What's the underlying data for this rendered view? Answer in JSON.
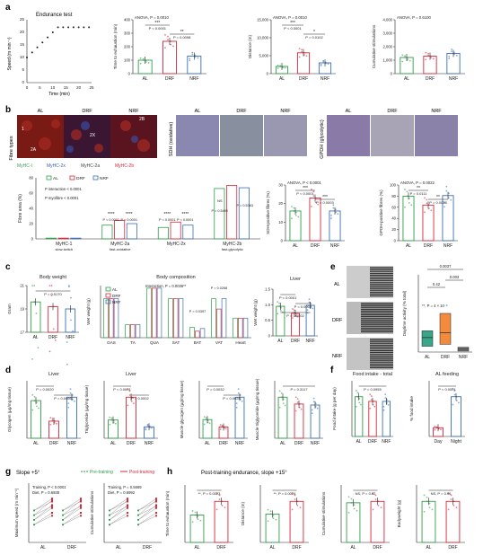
{
  "panels": {
    "a": "a",
    "b": "b",
    "c": "c",
    "d": "d",
    "e": "e",
    "f": "f",
    "g": "g",
    "h": "h"
  },
  "groups": [
    "AL",
    "DRF",
    "NRF"
  ],
  "colors": {
    "AL": "#2e9e48",
    "DRF": "#d6283a",
    "NRF": "#3b6fb6",
    "myhc1": "#3aa55a",
    "myhc2a": "#3b5fb0",
    "myhc2x": "#444444",
    "myhc2b": "#d6283a",
    "boxE_AL": "#3aa58a",
    "boxE_DRF": "#f28b3c",
    "boxE_NRF": "#7a7a7a"
  },
  "panel_a": {
    "endurance_title": "Endurance test",
    "speed_ylabel": "Speed (m min⁻¹)",
    "speed_xlabel": "Time (min)",
    "speed_xticks": [
      "0",
      "5",
      "10",
      "15",
      "20",
      "25"
    ],
    "speed_yticks": [
      "0",
      "5",
      "10",
      "15",
      "20",
      "25"
    ],
    "tte": {
      "ylabel": "Time to exhaustion (min)",
      "anova": "ANOVA, P = 0.0010",
      "p1": "P < 0.0001",
      "p2": "P = 0.0098",
      "s1": "***",
      "s2": "**",
      "yticks": [
        "0",
        "100",
        "200",
        "300",
        "400"
      ]
    },
    "dist": {
      "ylabel": "Distance (m)",
      "anova": "ANOVA, P = 0.0010",
      "p1": "P < 0.0001",
      "p2": "P = 0.0102",
      "s1": "***",
      "s2": "*",
      "yticks": [
        "0",
        "5,000",
        "10,000",
        "15,000"
      ]
    },
    "stim": {
      "ylabel": "Cumulative stimulations",
      "anova": "ANOVA, P = 0.6100",
      "yticks": [
        "0",
        "1,000",
        "2,000",
        "3,000",
        "4,000"
      ]
    }
  },
  "panel_b": {
    "fibre_types_label": "Fibre types",
    "sdh_label": "SDH (oxidative)",
    "gpdh_label": "GPDH (glycolytic)",
    "fib_labels": [
      "1",
      "2A",
      "2X",
      "2B"
    ],
    "legend_myhc": [
      "MyHC-I",
      "MyHC-2x",
      "MyHC-2a",
      "MyHC-2b"
    ],
    "fa_ylabel": "Fibre area (%)",
    "fa_pint": "P",
    "fa_pint_sub": "interaction",
    "fa_pint_val": "< 0.0001",
    "fa_pmyhc": "P",
    "fa_pmyhc_sub": "myofibre",
    "fa_pmyhc_val": "< 0.0001",
    "fa_yticks": [
      "0",
      "20",
      "40",
      "60",
      "80"
    ],
    "fa_cats": [
      {
        "name": "MyHC-1",
        "sub": "slow-twitch"
      },
      {
        "name": "MyHC-2a",
        "sub": "fast-oxidative"
      },
      {
        "name": "MyHC-2x",
        "sub": ""
      },
      {
        "name": "MyHC-2b",
        "sub": "fast-glycolytic"
      }
    ],
    "fa_p": [
      "P < 0.0001",
      "P < 0.0001",
      "P < 0.0001",
      "P < 0.0001",
      "NS",
      "P = 0.5490",
      "P = 0.5363"
    ],
    "fa_star": "****",
    "sdh": {
      "ylabel": "SDH-positive fibres (%)",
      "anova": "ANOVA, P < 0.0001",
      "p1": "P < 0.0001",
      "p2": "P = 0.0003",
      "s1": "***",
      "s2": "***",
      "yticks": [
        "0",
        "10",
        "20",
        "30"
      ]
    },
    "gpdh": {
      "ylabel": "GPDH-positive fibres (%)",
      "anova": "ANOVA, P = 0.0022",
      "p1": "P = 0.0111",
      "p2": "P = 0.0028",
      "s1": "**",
      "s2": "**",
      "yticks": [
        "0",
        "20",
        "40",
        "60",
        "80",
        "100"
      ]
    }
  },
  "panel_c": {
    "bw_title": "Body weight",
    "bw_ylabel": "Gram",
    "bw_p": "P = 0.5170",
    "bw_yticks": [
      "17",
      "19",
      "21"
    ],
    "bc_title": "Body composition",
    "bc_ylabel": "Wet weight (g)",
    "bc_interaction": "Interaction, P = 0.0036**",
    "bc_cats": [
      "GAS",
      "TA",
      "QUA",
      "SAT",
      "BAT",
      "VAT",
      "Heart"
    ],
    "bc_p": [
      "P = 0.0397",
      "P = 0.0268"
    ],
    "liver_title": "Liver",
    "liver_ylabel": "Wet weight (g)",
    "liver_p1": "P < 0.0001",
    "liver_p2": "P = 0.0002",
    "liver_p3": "P = 0.0002",
    "liver_yticks": [
      "0",
      "0.5",
      "1.0",
      "1.5"
    ]
  },
  "panel_d": {
    "liver1_title": "Liver",
    "glyc_ylabel": "Glycogen (µg/mg tissue)",
    "glyc_p1": "P = 0.0020",
    "glyc_p2": "P = 0.0066",
    "glyc_p3": "P = 0.0002",
    "liver2_title": "Liver",
    "tg_ylabel": "Triglyceride (µg/mg tissue)",
    "tg_p1": "P < 0.0001",
    "tg_p2": "P = 0.0002",
    "tg_p3": "P < 0.0001",
    "mg_ylabel": "Muscle glycogen (µg/mg tissue)",
    "mg_p1": "P = 0.0032",
    "mg_p2": "P = 0.0028",
    "mg_p3": "P = 0.0019",
    "mt_ylabel": "Muscle triglyceride (µg/mg tissue)",
    "mt_p": "P = 0.3117"
  },
  "panel_e": {
    "ylabel": "Daytime activity (% total)",
    "kw": "**, P = 4 × 10⁻⁵",
    "p1": "0.0037",
    "p2": "0.42",
    "p3": "0.003",
    "actogram_labels": [
      "AL",
      "DRF",
      "NRF"
    ]
  },
  "panel_f": {
    "fi_title": "Food intake - total",
    "fi_ylabel": "Food intake (g per day)",
    "fi_p": "P = 0.0955",
    "alf_title": "AL feeding",
    "alf_ylabel": "% food intake",
    "alf_p": "P < 0.0001",
    "alf_cats": [
      "Day",
      "Night"
    ]
  },
  "panel_g": {
    "slope": "Slope +5°",
    "pre": "Pre-training",
    "post": "Post-training",
    "ms_ylabel": "Maximum speed (m min⁻¹)",
    "ms_training": "Training, P < 0.0001",
    "ms_diet": "Diet, P = 0.6938",
    "cs_ylabel": "Cumulative stimulations",
    "cs_training": "Training, P = 0.5669",
    "cs_diet": "Diet, P = 0.6992"
  },
  "panel_h": {
    "title": "Post-training endurance, slope +15°",
    "tte_ylabel": "Time to exhaustion (min)",
    "tte_p": "**, P = 0.0023",
    "dist_ylabel": "Distance (m)",
    "dist_p": "**, P = 0.0024",
    "cs_ylabel": "Cumulative stimulations",
    "cs_p": "NS, P = 0.62",
    "bw_ylabel": "Bodyweight (g)",
    "bw_p": "NS, P = 0.96"
  },
  "chart_data": [
    {
      "type": "line",
      "id": "a-speed",
      "title": "Endurance test",
      "xlabel": "Time (min)",
      "ylabel": "Speed (m min⁻¹)",
      "x": [
        0,
        2,
        4,
        6,
        8,
        10,
        12,
        14,
        16,
        18,
        20,
        22,
        24
      ],
      "y": [
        10,
        12,
        14,
        16,
        18,
        20,
        22,
        22,
        22,
        22,
        22,
        22,
        22
      ],
      "xlim": [
        0,
        25
      ],
      "ylim": [
        0,
        25
      ]
    },
    {
      "type": "bar",
      "id": "a-tte",
      "categories": [
        "AL",
        "DRF",
        "NRF"
      ],
      "values": [
        100,
        240,
        130
      ],
      "ylim": [
        0,
        400
      ]
    },
    {
      "type": "bar",
      "id": "a-dist",
      "categories": [
        "AL",
        "DRF",
        "NRF"
      ],
      "values": [
        2000,
        5800,
        3000
      ],
      "ylim": [
        0,
        15000
      ]
    },
    {
      "type": "bar",
      "id": "a-stim",
      "categories": [
        "AL",
        "DRF",
        "NRF"
      ],
      "values": [
        1200,
        1300,
        1500
      ],
      "ylim": [
        0,
        4000
      ]
    },
    {
      "type": "bar",
      "id": "b-sdh",
      "categories": [
        "AL",
        "DRF",
        "NRF"
      ],
      "values": [
        16,
        23,
        16
      ],
      "ylim": [
        0,
        30
      ]
    },
    {
      "type": "bar",
      "id": "b-gpdh",
      "categories": [
        "AL",
        "DRF",
        "NRF"
      ],
      "values": [
        80,
        64,
        81
      ],
      "ylim": [
        0,
        100
      ]
    },
    {
      "type": "bar",
      "id": "b-fibre",
      "categories": [
        "MyHC-1",
        "MyHC-2a",
        "MyHC-2x",
        "MyHC-2b"
      ],
      "series": [
        {
          "name": "AL",
          "values": [
            1,
            18,
            15,
            66
          ]
        },
        {
          "name": "DRF",
          "values": [
            1,
            24,
            22,
            70
          ]
        },
        {
          "name": "NRF",
          "values": [
            1,
            20,
            18,
            67
          ]
        }
      ],
      "ylim": [
        0,
        80
      ]
    },
    {
      "type": "bar",
      "id": "c-bw",
      "categories": [
        "AL",
        "DRF",
        "NRF"
      ],
      "values": [
        19.6,
        19.2,
        19.0
      ],
      "ylim": [
        17,
        21
      ]
    },
    {
      "type": "bar",
      "id": "c-bc",
      "categories": [
        "GAS",
        "TA",
        "QUA",
        "SAT",
        "BAT",
        "VAT",
        "Heart"
      ],
      "series": [
        {
          "name": "AL",
          "values": [
            0.3,
            0.1,
            0.38,
            0.3,
            0.08,
            0.3,
            0.15
          ]
        },
        {
          "name": "DRF",
          "values": [
            0.3,
            0.1,
            0.38,
            0.3,
            0.05,
            0.22,
            0.15
          ]
        },
        {
          "name": "NRF",
          "values": [
            0.3,
            0.1,
            0.38,
            0.3,
            0.07,
            0.3,
            0.15
          ]
        }
      ],
      "ylim": [
        0,
        0.4
      ]
    },
    {
      "type": "bar",
      "id": "c-liver",
      "categories": [
        "AL",
        "DRF",
        "NRF"
      ],
      "values": [
        0.95,
        0.72,
        0.98
      ],
      "ylim": [
        0,
        1.5
      ]
    },
    {
      "type": "box",
      "id": "e-daytime",
      "categories": [
        "AL",
        "DRF",
        "NRF"
      ],
      "median": [
        1.5,
        2.0,
        0.3
      ],
      "q1": [
        0.6,
        0.8,
        0.1
      ],
      "q3": [
        2.2,
        4.0,
        0.5
      ]
    },
    {
      "type": "bar",
      "id": "d-glyc",
      "categories": [
        "AL",
        "DRF",
        "NRF"
      ],
      "values": [
        22,
        10,
        24
      ]
    },
    {
      "type": "bar",
      "id": "d-tg",
      "categories": [
        "AL",
        "DRF",
        "NRF"
      ],
      "values": [
        8,
        18,
        5
      ]
    },
    {
      "type": "bar",
      "id": "d-mg",
      "categories": [
        "AL",
        "DRF",
        "NRF"
      ],
      "values": [
        0.5,
        0.3,
        1.1
      ]
    },
    {
      "type": "bar",
      "id": "d-mt",
      "categories": [
        "AL",
        "DRF",
        "NRF"
      ],
      "values": [
        4.2,
        3.5,
        3.4
      ]
    },
    {
      "type": "bar",
      "id": "f-fi",
      "categories": [
        "AL",
        "DRF",
        "NRF"
      ],
      "values": [
        3.4,
        3.0,
        3.0
      ]
    },
    {
      "type": "bar",
      "id": "f-alf",
      "categories": [
        "Day",
        "Night"
      ],
      "values": [
        18,
        82
      ]
    },
    {
      "type": "bar",
      "id": "h-tte",
      "categories": [
        "AL",
        "DRF"
      ],
      "values": [
        100,
        150
      ]
    },
    {
      "type": "bar",
      "id": "h-dist",
      "categories": [
        "AL",
        "DRF"
      ],
      "values": [
        2700,
        3900
      ]
    },
    {
      "type": "bar",
      "id": "h-cs",
      "categories": [
        "AL",
        "DRF"
      ],
      "values": [
        1400,
        1450
      ]
    },
    {
      "type": "bar",
      "id": "h-bw",
      "categories": [
        "AL",
        "DRF"
      ],
      "values": [
        21,
        21
      ]
    }
  ]
}
